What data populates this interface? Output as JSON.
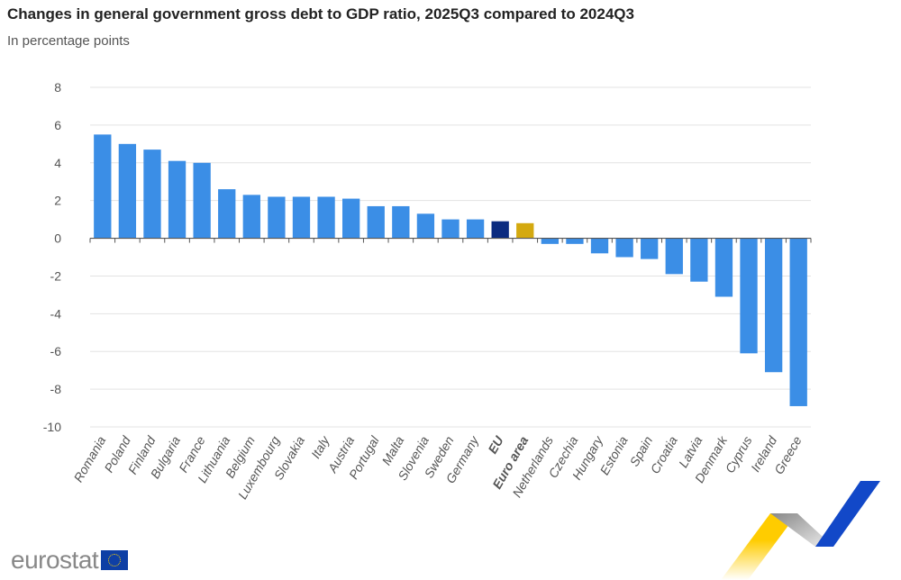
{
  "chart_data": {
    "type": "bar",
    "title": "Changes in general government gross debt to GDP ratio, 2025Q3 compared to 2024Q3",
    "subtitle": "In percentage points",
    "categories": [
      "Romania",
      "Poland",
      "Finland",
      "Bulgaria",
      "France",
      "Lithuania",
      "Belgium",
      "Luxembourg",
      "Slovakia",
      "Italy",
      "Austria",
      "Portugal",
      "Malta",
      "Slovenia",
      "Sweden",
      "Germany",
      "EU",
      "Euro area",
      "Netherlands",
      "Czechia",
      "Hungary",
      "Estonia",
      "Spain",
      "Croatia",
      "Latvia",
      "Denmark",
      "Cyprus",
      "Ireland",
      "Greece"
    ],
    "values": [
      5.5,
      5.0,
      4.7,
      4.1,
      4.0,
      2.6,
      2.3,
      2.2,
      2.2,
      2.2,
      2.1,
      1.7,
      1.7,
      1.3,
      1.0,
      1.0,
      0.9,
      0.8,
      -0.3,
      -0.3,
      -0.8,
      -1.0,
      -1.1,
      -1.9,
      -2.3,
      -3.1,
      -6.1,
      -7.1,
      -8.9
    ],
    "bold_categories": [
      "EU",
      "Euro area"
    ],
    "ylim": [
      -10,
      8
    ],
    "yticks": [
      8,
      6,
      4,
      2,
      0,
      -2,
      -4,
      -6,
      -8,
      -10
    ],
    "grid": true,
    "colors": {
      "default": "#3b8ee6",
      "EU": "#0b2b80",
      "Euro area": "#d4a90f"
    }
  },
  "logo": {
    "text": "eurostat"
  }
}
